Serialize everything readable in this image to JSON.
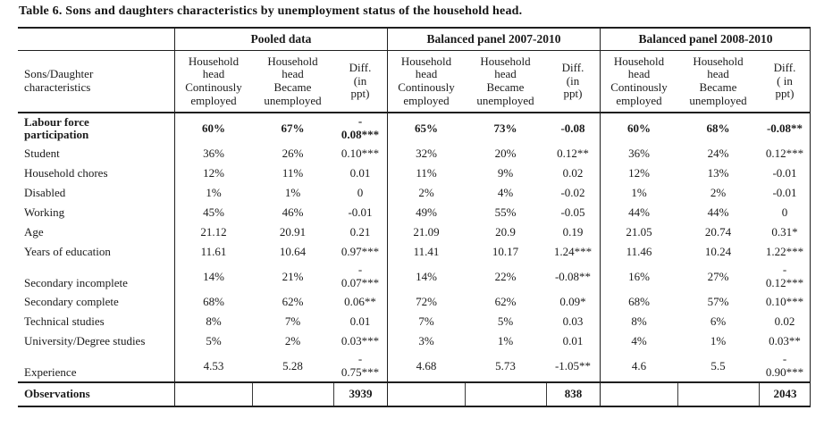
{
  "title": "Table 6. Sons and daughters characteristics by unemployment status of the household head.",
  "table": {
    "row_header_label": "Sons/Daughter\ncharacteristics",
    "groups": [
      {
        "label": "Pooled data",
        "columns": [
          "Household\nhead\nContinously\nemployed",
          "Household\nhead\nBecame\nunemployed",
          "Diff.\n(in\nppt)"
        ]
      },
      {
        "label": "Balanced panel 2007-2010",
        "columns": [
          "Household\nhead\nContinously\nemployed",
          "Household\nhead\nBecame\nunemployed",
          "Diff.\n(in\nppt)"
        ]
      },
      {
        "label": "Balanced panel 2008-2010",
        "columns": [
          "Household\nhead\nContinously\nemployed",
          "Household\nhead\nBecame\nunemployed",
          "Diff.\n( in\nppt)"
        ]
      }
    ],
    "rows": [
      {
        "label": "Labour force\nparticipation",
        "bold": true,
        "values": [
          "60%",
          "67%",
          "-\n0.08***",
          "65%",
          "73%",
          "-0.08",
          "60%",
          "68%",
          "-0.08**"
        ]
      },
      {
        "label": "Student",
        "values": [
          "36%",
          "26%",
          "0.10***",
          "32%",
          "20%",
          "0.12**",
          "36%",
          "24%",
          "0.12***"
        ]
      },
      {
        "label": "Household chores",
        "values": [
          "12%",
          "11%",
          "0.01",
          "11%",
          "9%",
          "0.02",
          "12%",
          "13%",
          "-0.01"
        ]
      },
      {
        "label": "Disabled",
        "values": [
          "1%",
          "1%",
          "0",
          "2%",
          "4%",
          "-0.02",
          "1%",
          "2%",
          "-0.01"
        ]
      },
      {
        "label": "Working",
        "values": [
          "45%",
          "46%",
          "-0.01",
          "49%",
          "55%",
          "-0.05",
          "44%",
          "44%",
          "0"
        ]
      },
      {
        "label": "Age",
        "values": [
          "21.12",
          "20.91",
          "0.21",
          "21.09",
          "20.9",
          "0.19",
          "21.05",
          "20.74",
          "0.31*"
        ]
      },
      {
        "label": "Years of education",
        "values": [
          "11.61",
          "10.64",
          "0.97***",
          "11.41",
          "10.17",
          "1.24***",
          "11.46",
          "10.24",
          "1.22***"
        ]
      },
      {
        "label": "Secondary incomplete",
        "values": [
          "14%",
          "21%",
          "-\n0.07***",
          "14%",
          "22%",
          "-0.08**",
          "16%",
          "27%",
          "-\n0.12***"
        ]
      },
      {
        "label": "Secondary complete",
        "values": [
          "68%",
          "62%",
          "0.06**",
          "72%",
          "62%",
          "0.09*",
          "68%",
          "57%",
          "0.10***"
        ]
      },
      {
        "label": "Technical studies",
        "values": [
          "8%",
          "7%",
          "0.01",
          "7%",
          "5%",
          "0.03",
          "8%",
          "6%",
          "0.02"
        ]
      },
      {
        "label": "University/Degree studies",
        "values": [
          "5%",
          "2%",
          "0.03***",
          "3%",
          "1%",
          "0.01",
          "4%",
          "1%",
          "0.03**"
        ]
      },
      {
        "label": "Experience",
        "values": [
          "4.53",
          "5.28",
          "-\n0.75***",
          "4.68",
          "5.73",
          "-1.05**",
          "4.6",
          "5.5",
          "-\n0.90***"
        ]
      }
    ],
    "observations": {
      "label": "Observations",
      "values": [
        "",
        "",
        "3939",
        "",
        "",
        "838",
        "",
        "",
        "2043"
      ]
    }
  }
}
